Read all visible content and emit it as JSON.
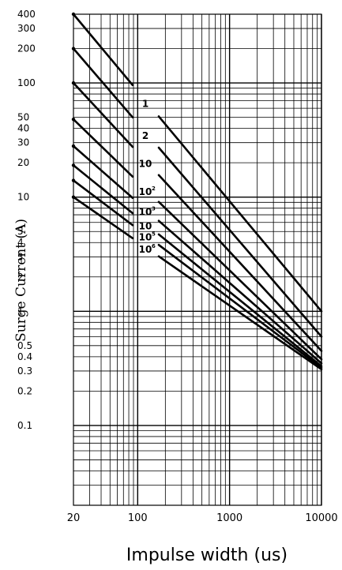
{
  "chart_data": {
    "type": "line",
    "xlabel": "Impulse width (us)",
    "ylabel": "Surge Current  (A)",
    "x_scale": "log",
    "y_scale": "log",
    "xlim": [
      20,
      10000
    ],
    "ylim": [
      0.02,
      400
    ],
    "grid": true,
    "x_ticks": [
      {
        "value": 20,
        "label": "20"
      },
      {
        "value": 100,
        "label": "100"
      },
      {
        "value": 1000,
        "label": "1000"
      },
      {
        "value": 10000,
        "label": "10000"
      }
    ],
    "y_ticks": [
      {
        "value": 400,
        "label": "400"
      },
      {
        "value": 300,
        "label": "300"
      },
      {
        "value": 200,
        "label": "200"
      },
      {
        "value": 100,
        "label": "100"
      },
      {
        "value": 50,
        "label": "50"
      },
      {
        "value": 40,
        "label": "40"
      },
      {
        "value": 30,
        "label": "30"
      },
      {
        "value": 20,
        "label": "20"
      },
      {
        "value": 10,
        "label": "10"
      },
      {
        "value": 5,
        "label": "5"
      },
      {
        "value": 4,
        "label": "4"
      },
      {
        "value": 3,
        "label": "3"
      },
      {
        "value": 2,
        "label": "2"
      },
      {
        "value": 1,
        "label": "1"
      },
      {
        "value": 0.5,
        "label": "0.5"
      },
      {
        "value": 0.4,
        "label": "0.4"
      },
      {
        "value": 0.3,
        "label": "0.3"
      },
      {
        "value": 0.2,
        "label": "0.2"
      },
      {
        "value": 0.1,
        "label": "0.1"
      }
    ],
    "series": [
      {
        "label_base": "1",
        "label_exp": "",
        "x": [
          20,
          10000
        ],
        "y": [
          400,
          1.0
        ]
      },
      {
        "label_base": "2",
        "label_exp": "",
        "x": [
          20,
          10000
        ],
        "y": [
          200,
          0.6
        ]
      },
      {
        "label_base": "10",
        "label_exp": "",
        "x": [
          20,
          10000
        ],
        "y": [
          100,
          0.45
        ]
      },
      {
        "label_base": "10",
        "label_exp": "2",
        "x": [
          20,
          10000
        ],
        "y": [
          48,
          0.38
        ]
      },
      {
        "label_base": "10",
        "label_exp": "3",
        "x": [
          20,
          10000
        ],
        "y": [
          28,
          0.35
        ]
      },
      {
        "label_base": "10",
        "label_exp": "",
        "x": [
          20,
          10000
        ],
        "y": [
          19,
          0.33
        ]
      },
      {
        "label_base": "10",
        "label_exp": "5",
        "x": [
          20,
          10000
        ],
        "y": [
          14,
          0.32
        ]
      },
      {
        "label_base": "10",
        "label_exp": "6",
        "x": [
          20,
          10000
        ],
        "y": [
          10,
          0.31
        ]
      }
    ]
  }
}
